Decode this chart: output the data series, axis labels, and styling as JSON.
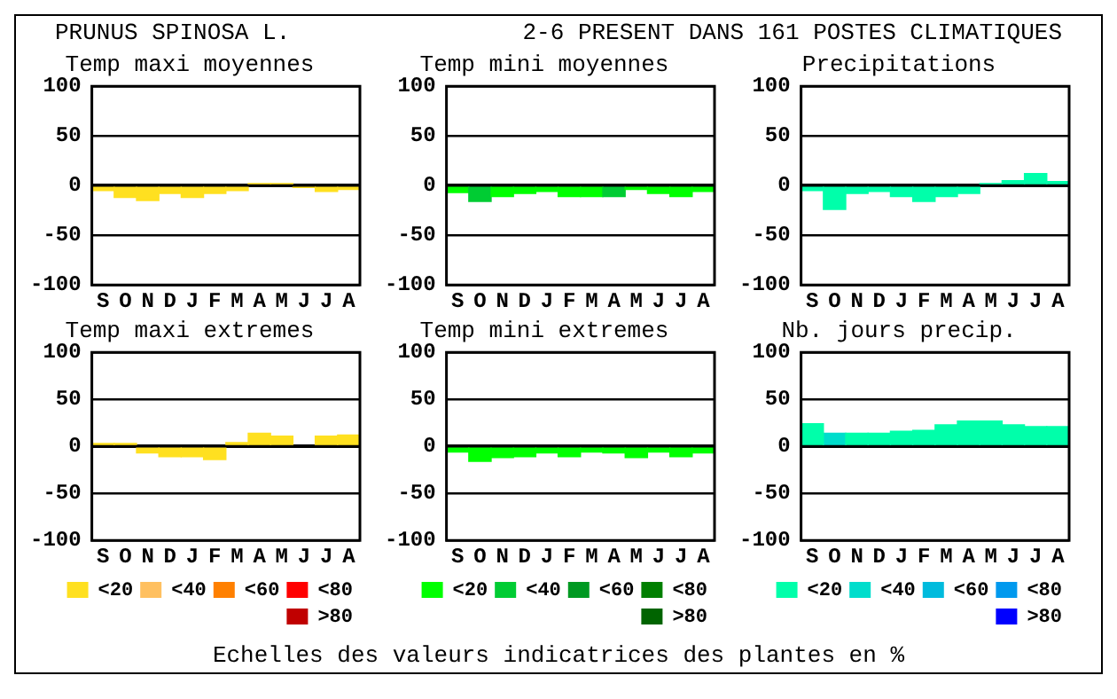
{
  "chart_data": [
    {
      "type": "other",
      "title": "PRUNUS SPINOSA L.",
      "subtitle": "2-6 PRESENT DANS 161 POSTES CLIMATIQUES",
      "annotations": [
        "Echelles des valeurs indicatrices des plantes en %"
      ]
    },
    {
      "type": "bar",
      "title": "Temp maxi moyennes",
      "categories": [
        "S",
        "O",
        "N",
        "D",
        "J",
        "F",
        "M",
        "A",
        "M",
        "J",
        "J",
        "A"
      ],
      "values": [
        -5,
        -12,
        -15,
        -8,
        -12,
        -8,
        -5,
        2,
        2,
        -2,
        -6,
        -4
      ],
      "colors": [
        "#ffe020",
        "#ffe020",
        "#ffe020",
        "#ffe020",
        "#ffe020",
        "#ffe020",
        "#ffe020",
        "#ffe020",
        "#ffe020",
        "#ffe020",
        "#ffe020",
        "#ffe020"
      ],
      "ylim": [
        -100,
        100
      ],
      "yticks": [
        -100,
        -50,
        0,
        50,
        100
      ],
      "grid": "y"
    },
    {
      "type": "bar",
      "title": "Temp mini moyennes",
      "categories": [
        "S",
        "O",
        "N",
        "D",
        "J",
        "F",
        "M",
        "A",
        "M",
        "J",
        "J",
        "A"
      ],
      "values": [
        -7,
        -16,
        -11,
        -8,
        -6,
        -11,
        -11,
        -11,
        -4,
        -8,
        -11,
        -6
      ],
      "colors": [
        "#00ff00",
        "#00cc33",
        "#00ff00",
        "#00ff00",
        "#00ff00",
        "#00ff00",
        "#00ff00",
        "#00cc33",
        "#00ff00",
        "#00ff00",
        "#00ff00",
        "#00ff00"
      ],
      "ylim": [
        -100,
        100
      ],
      "yticks": [
        -100,
        -50,
        0,
        50,
        100
      ],
      "grid": "y"
    },
    {
      "type": "bar",
      "title": "Precipitations",
      "categories": [
        "S",
        "O",
        "N",
        "D",
        "J",
        "F",
        "M",
        "A",
        "M",
        "J",
        "J",
        "A"
      ],
      "values": [
        -5,
        -24,
        -8,
        -6,
        -11,
        -16,
        -11,
        -8,
        2,
        5,
        12,
        4
      ],
      "colors": [
        "#00ffaa",
        "#00ffaa",
        "#00ffaa",
        "#00ffaa",
        "#00ffaa",
        "#00ffaa",
        "#00ffaa",
        "#00ffaa",
        "#00ffaa",
        "#00ffaa",
        "#00ffaa",
        "#00ffaa"
      ],
      "ylim": [
        -100,
        100
      ],
      "yticks": [
        -100,
        -50,
        0,
        50,
        100
      ],
      "grid": "y"
    },
    {
      "type": "bar",
      "title": "Temp maxi extremes",
      "categories": [
        "S",
        "O",
        "N",
        "D",
        "J",
        "F",
        "M",
        "A",
        "M",
        "J",
        "J",
        "A"
      ],
      "stacked": true,
      "legend": "bottom",
      "series": [
        {
          "name": "<20",
          "color": "#ffe020",
          "values": [
            3,
            3,
            -7,
            -11,
            -11,
            -14,
            4,
            14,
            11,
            null,
            11,
            12
          ]
        },
        {
          "name": "<40",
          "color": "#ffc060",
          "values": [
            null,
            null,
            null,
            null,
            null,
            null,
            null,
            null,
            null,
            null,
            null,
            null
          ]
        },
        {
          "name": "<60",
          "color": "#ff8000",
          "values": [
            null,
            null,
            null,
            null,
            null,
            null,
            null,
            null,
            null,
            null,
            null,
            null
          ]
        },
        {
          "name": "<80",
          "color": "#ff0000",
          "values": [
            null,
            null,
            null,
            null,
            null,
            null,
            null,
            null,
            null,
            null,
            null,
            null
          ]
        },
        {
          "name": ">80",
          "color": "#c00000",
          "values": [
            null,
            null,
            null,
            null,
            null,
            null,
            null,
            null,
            null,
            null,
            null,
            null
          ]
        }
      ],
      "ylim": [
        -100,
        100
      ],
      "yticks": [
        -100,
        -50,
        0,
        50,
        100
      ],
      "grid": "y"
    },
    {
      "type": "bar",
      "title": "Temp mini extremes",
      "categories": [
        "S",
        "O",
        "N",
        "D",
        "J",
        "F",
        "M",
        "A",
        "M",
        "J",
        "J",
        "A"
      ],
      "stacked": true,
      "legend": "bottom",
      "series": [
        {
          "name": "<20",
          "color": "#00ff00",
          "values": [
            -6,
            -16,
            -12,
            -11,
            -7,
            -11,
            -6,
            -7,
            -12,
            -6,
            -11,
            -7
          ]
        },
        {
          "name": "<40",
          "color": "#00cc33",
          "values": [
            null,
            null,
            null,
            null,
            null,
            null,
            null,
            null,
            null,
            null,
            null,
            null
          ]
        },
        {
          "name": "<60",
          "color": "#009922",
          "values": [
            null,
            null,
            null,
            null,
            null,
            null,
            null,
            null,
            null,
            null,
            null,
            null
          ]
        },
        {
          "name": "<80",
          "color": "#007f00",
          "values": [
            null,
            null,
            null,
            null,
            null,
            null,
            null,
            null,
            null,
            null,
            null,
            null
          ]
        },
        {
          "name": ">80",
          "color": "#006400",
          "values": [
            null,
            null,
            null,
            null,
            null,
            null,
            null,
            null,
            null,
            null,
            null,
            null
          ]
        }
      ],
      "ylim": [
        -100,
        100
      ],
      "yticks": [
        -100,
        -50,
        0,
        50,
        100
      ],
      "grid": "y"
    },
    {
      "type": "bar",
      "title": "Nb. jours precip.",
      "categories": [
        "S",
        "O",
        "N",
        "D",
        "J",
        "F",
        "M",
        "A",
        "M",
        "J",
        "J",
        "A"
      ],
      "stacked": true,
      "legend": "bottom",
      "series": [
        {
          "name": "<20",
          "color": "#00ffaa",
          "values": [
            24,
            null,
            14,
            14,
            16,
            17,
            23,
            27,
            27,
            23,
            21,
            21
          ]
        },
        {
          "name": "<40",
          "color": "#00ddcc",
          "values": [
            null,
            14,
            null,
            null,
            null,
            null,
            null,
            null,
            null,
            null,
            null,
            null
          ]
        },
        {
          "name": "<60",
          "color": "#00bbdd",
          "values": [
            null,
            null,
            null,
            null,
            null,
            null,
            null,
            null,
            null,
            null,
            null,
            null
          ]
        },
        {
          "name": "<80",
          "color": "#0099ee",
          "values": [
            null,
            null,
            null,
            null,
            null,
            null,
            null,
            null,
            null,
            null,
            null,
            null
          ]
        },
        {
          "name": ">80",
          "color": "#0000ff",
          "values": [
            null,
            null,
            null,
            null,
            null,
            null,
            null,
            null,
            null,
            null,
            null,
            null
          ]
        }
      ],
      "ylim": [
        -100,
        100
      ],
      "yticks": [
        -100,
        -50,
        0,
        50,
        100
      ],
      "grid": "y"
    }
  ]
}
